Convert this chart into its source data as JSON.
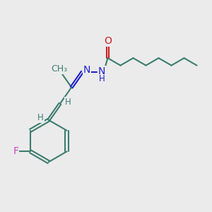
{
  "bg_color": "#ebebeb",
  "bond_color": "#3d7d6e",
  "N_color": "#2020cc",
  "O_color": "#cc2020",
  "F_color": "#cc44bb",
  "H_color": "#3d7d6e",
  "line_width": 1.5,
  "dbo": 0.055,
  "font_size_atom": 10,
  "font_size_H": 8.5,
  "fig_w": 3.0,
  "fig_h": 3.0,
  "dpi": 100,
  "xlim": [
    0,
    10
  ],
  "ylim": [
    0,
    10
  ]
}
